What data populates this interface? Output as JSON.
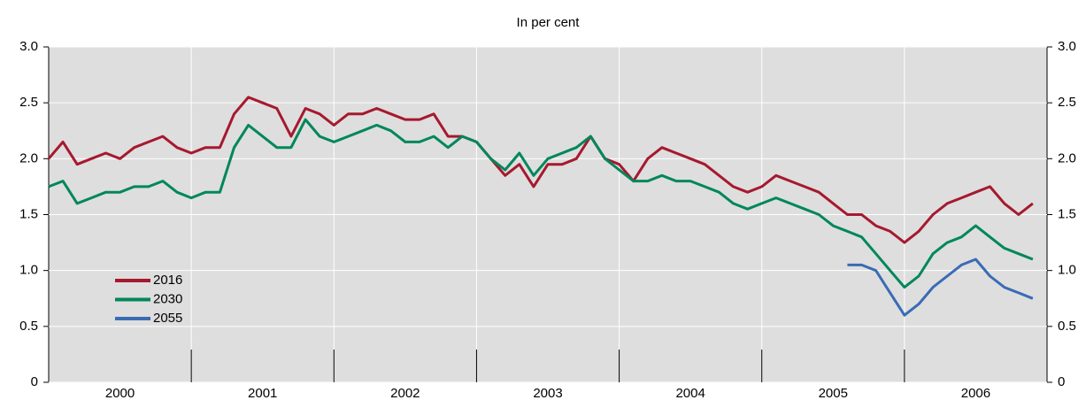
{
  "chart_data": {
    "type": "line",
    "title": "In per cent",
    "categories": [
      "2000",
      "2001",
      "2002",
      "2003",
      "2004",
      "2005",
      "2006"
    ],
    "x": [
      2000.0,
      2000.1,
      2000.2,
      2000.3,
      2000.4,
      2000.5,
      2000.6,
      2000.7,
      2000.8,
      2000.9,
      2001.0,
      2001.1,
      2001.2,
      2001.3,
      2001.4,
      2001.5,
      2001.6,
      2001.7,
      2001.8,
      2001.9,
      2002.0,
      2002.1,
      2002.2,
      2002.3,
      2002.4,
      2002.5,
      2002.6,
      2002.7,
      2002.8,
      2002.9,
      2003.0,
      2003.1,
      2003.2,
      2003.3,
      2003.4,
      2003.5,
      2003.6,
      2003.7,
      2003.8,
      2003.9,
      2004.0,
      2004.1,
      2004.2,
      2004.3,
      2004.4,
      2004.5,
      2004.6,
      2004.7,
      2004.8,
      2004.9,
      2005.0,
      2005.1,
      2005.2,
      2005.3,
      2005.4,
      2005.5,
      2005.6,
      2005.7,
      2005.8,
      2005.9,
      2006.0,
      2006.1,
      2006.2,
      2006.3,
      2006.4,
      2006.5,
      2006.6,
      2006.7,
      2006.8,
      2006.9
    ],
    "series": [
      {
        "name": "2016",
        "color": "#a6192e",
        "values": [
          2.0,
          2.15,
          1.95,
          2.0,
          2.05,
          2.0,
          2.1,
          2.15,
          2.2,
          2.1,
          2.05,
          2.1,
          2.1,
          2.4,
          2.55,
          2.5,
          2.45,
          2.2,
          2.45,
          2.4,
          2.3,
          2.4,
          2.4,
          2.45,
          2.4,
          2.35,
          2.35,
          2.4,
          2.2,
          2.2,
          2.15,
          2.0,
          1.85,
          1.95,
          1.75,
          1.95,
          1.95,
          2.0,
          2.2,
          2.0,
          1.95,
          1.8,
          2.0,
          2.1,
          2.05,
          2.0,
          1.95,
          1.85,
          1.75,
          1.7,
          1.75,
          1.85,
          1.8,
          1.75,
          1.7,
          1.6,
          1.5,
          1.5,
          1.4,
          1.35,
          1.25,
          1.35,
          1.5,
          1.6,
          1.65,
          1.7,
          1.75,
          1.6,
          1.5,
          1.6
        ]
      },
      {
        "name": "2030",
        "color": "#00875a",
        "values": [
          1.75,
          1.8,
          1.6,
          1.65,
          1.7,
          1.7,
          1.75,
          1.75,
          1.8,
          1.7,
          1.65,
          1.7,
          1.7,
          2.1,
          2.3,
          2.2,
          2.1,
          2.1,
          2.35,
          2.2,
          2.15,
          2.2,
          2.25,
          2.3,
          2.25,
          2.15,
          2.15,
          2.2,
          2.1,
          2.2,
          2.15,
          2.0,
          1.9,
          2.05,
          1.85,
          2.0,
          2.05,
          2.1,
          2.2,
          2.0,
          1.9,
          1.8,
          1.8,
          1.85,
          1.8,
          1.8,
          1.75,
          1.7,
          1.6,
          1.55,
          1.6,
          1.65,
          1.6,
          1.55,
          1.5,
          1.4,
          1.35,
          1.3,
          1.15,
          1.0,
          0.85,
          0.95,
          1.15,
          1.25,
          1.3,
          1.4,
          1.3,
          1.2,
          1.15,
          1.1
        ]
      },
      {
        "name": "2055",
        "color": "#3a6bb5",
        "values": [
          null,
          null,
          null,
          null,
          null,
          null,
          null,
          null,
          null,
          null,
          null,
          null,
          null,
          null,
          null,
          null,
          null,
          null,
          null,
          null,
          null,
          null,
          null,
          null,
          null,
          null,
          null,
          null,
          null,
          null,
          null,
          null,
          null,
          null,
          null,
          null,
          null,
          null,
          null,
          null,
          null,
          null,
          null,
          null,
          null,
          null,
          null,
          null,
          null,
          null,
          null,
          null,
          null,
          null,
          null,
          null,
          1.05,
          1.05,
          1.0,
          0.8,
          0.6,
          0.7,
          0.85,
          0.95,
          1.05,
          1.1,
          0.95,
          0.85,
          0.8,
          0.75
        ]
      }
    ],
    "xlim": [
      2000,
      2007
    ],
    "xticks": [
      2001,
      2002,
      2003,
      2004,
      2005,
      2006
    ],
    "ylim": [
      0,
      3
    ],
    "yticks": [
      {
        "value": 3,
        "label": "3.0"
      },
      2.5,
      {
        "value": 2,
        "label": "2.0"
      },
      1.5,
      {
        "value": 1,
        "label": "1.0"
      },
      0.5,
      0
    ],
    "grid": true
  }
}
